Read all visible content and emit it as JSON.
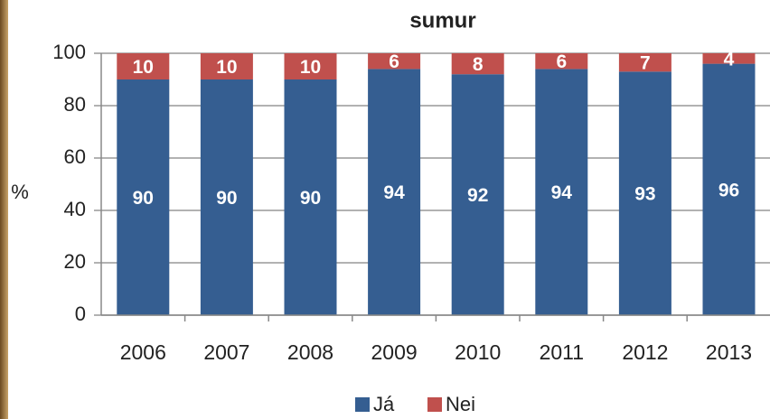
{
  "chart_data": {
    "type": "stacked_bar",
    "title": "sumur",
    "y_label": "%",
    "categories": [
      "2006",
      "2007",
      "2008",
      "2009",
      "2010",
      "2011",
      "2012",
      "2013"
    ],
    "series": [
      {
        "name": "Já",
        "color": "#355e91",
        "values": [
          90,
          90,
          90,
          94,
          92,
          94,
          93,
          96
        ]
      },
      {
        "name": "Nei",
        "color": "#c0504d",
        "values": [
          10,
          10,
          10,
          6,
          8,
          6,
          7,
          4
        ]
      }
    ],
    "ylim": [
      0,
      100
    ],
    "yticks": [
      0,
      20,
      40,
      60,
      80,
      100
    ],
    "grid": true,
    "legend": "bottom"
  }
}
